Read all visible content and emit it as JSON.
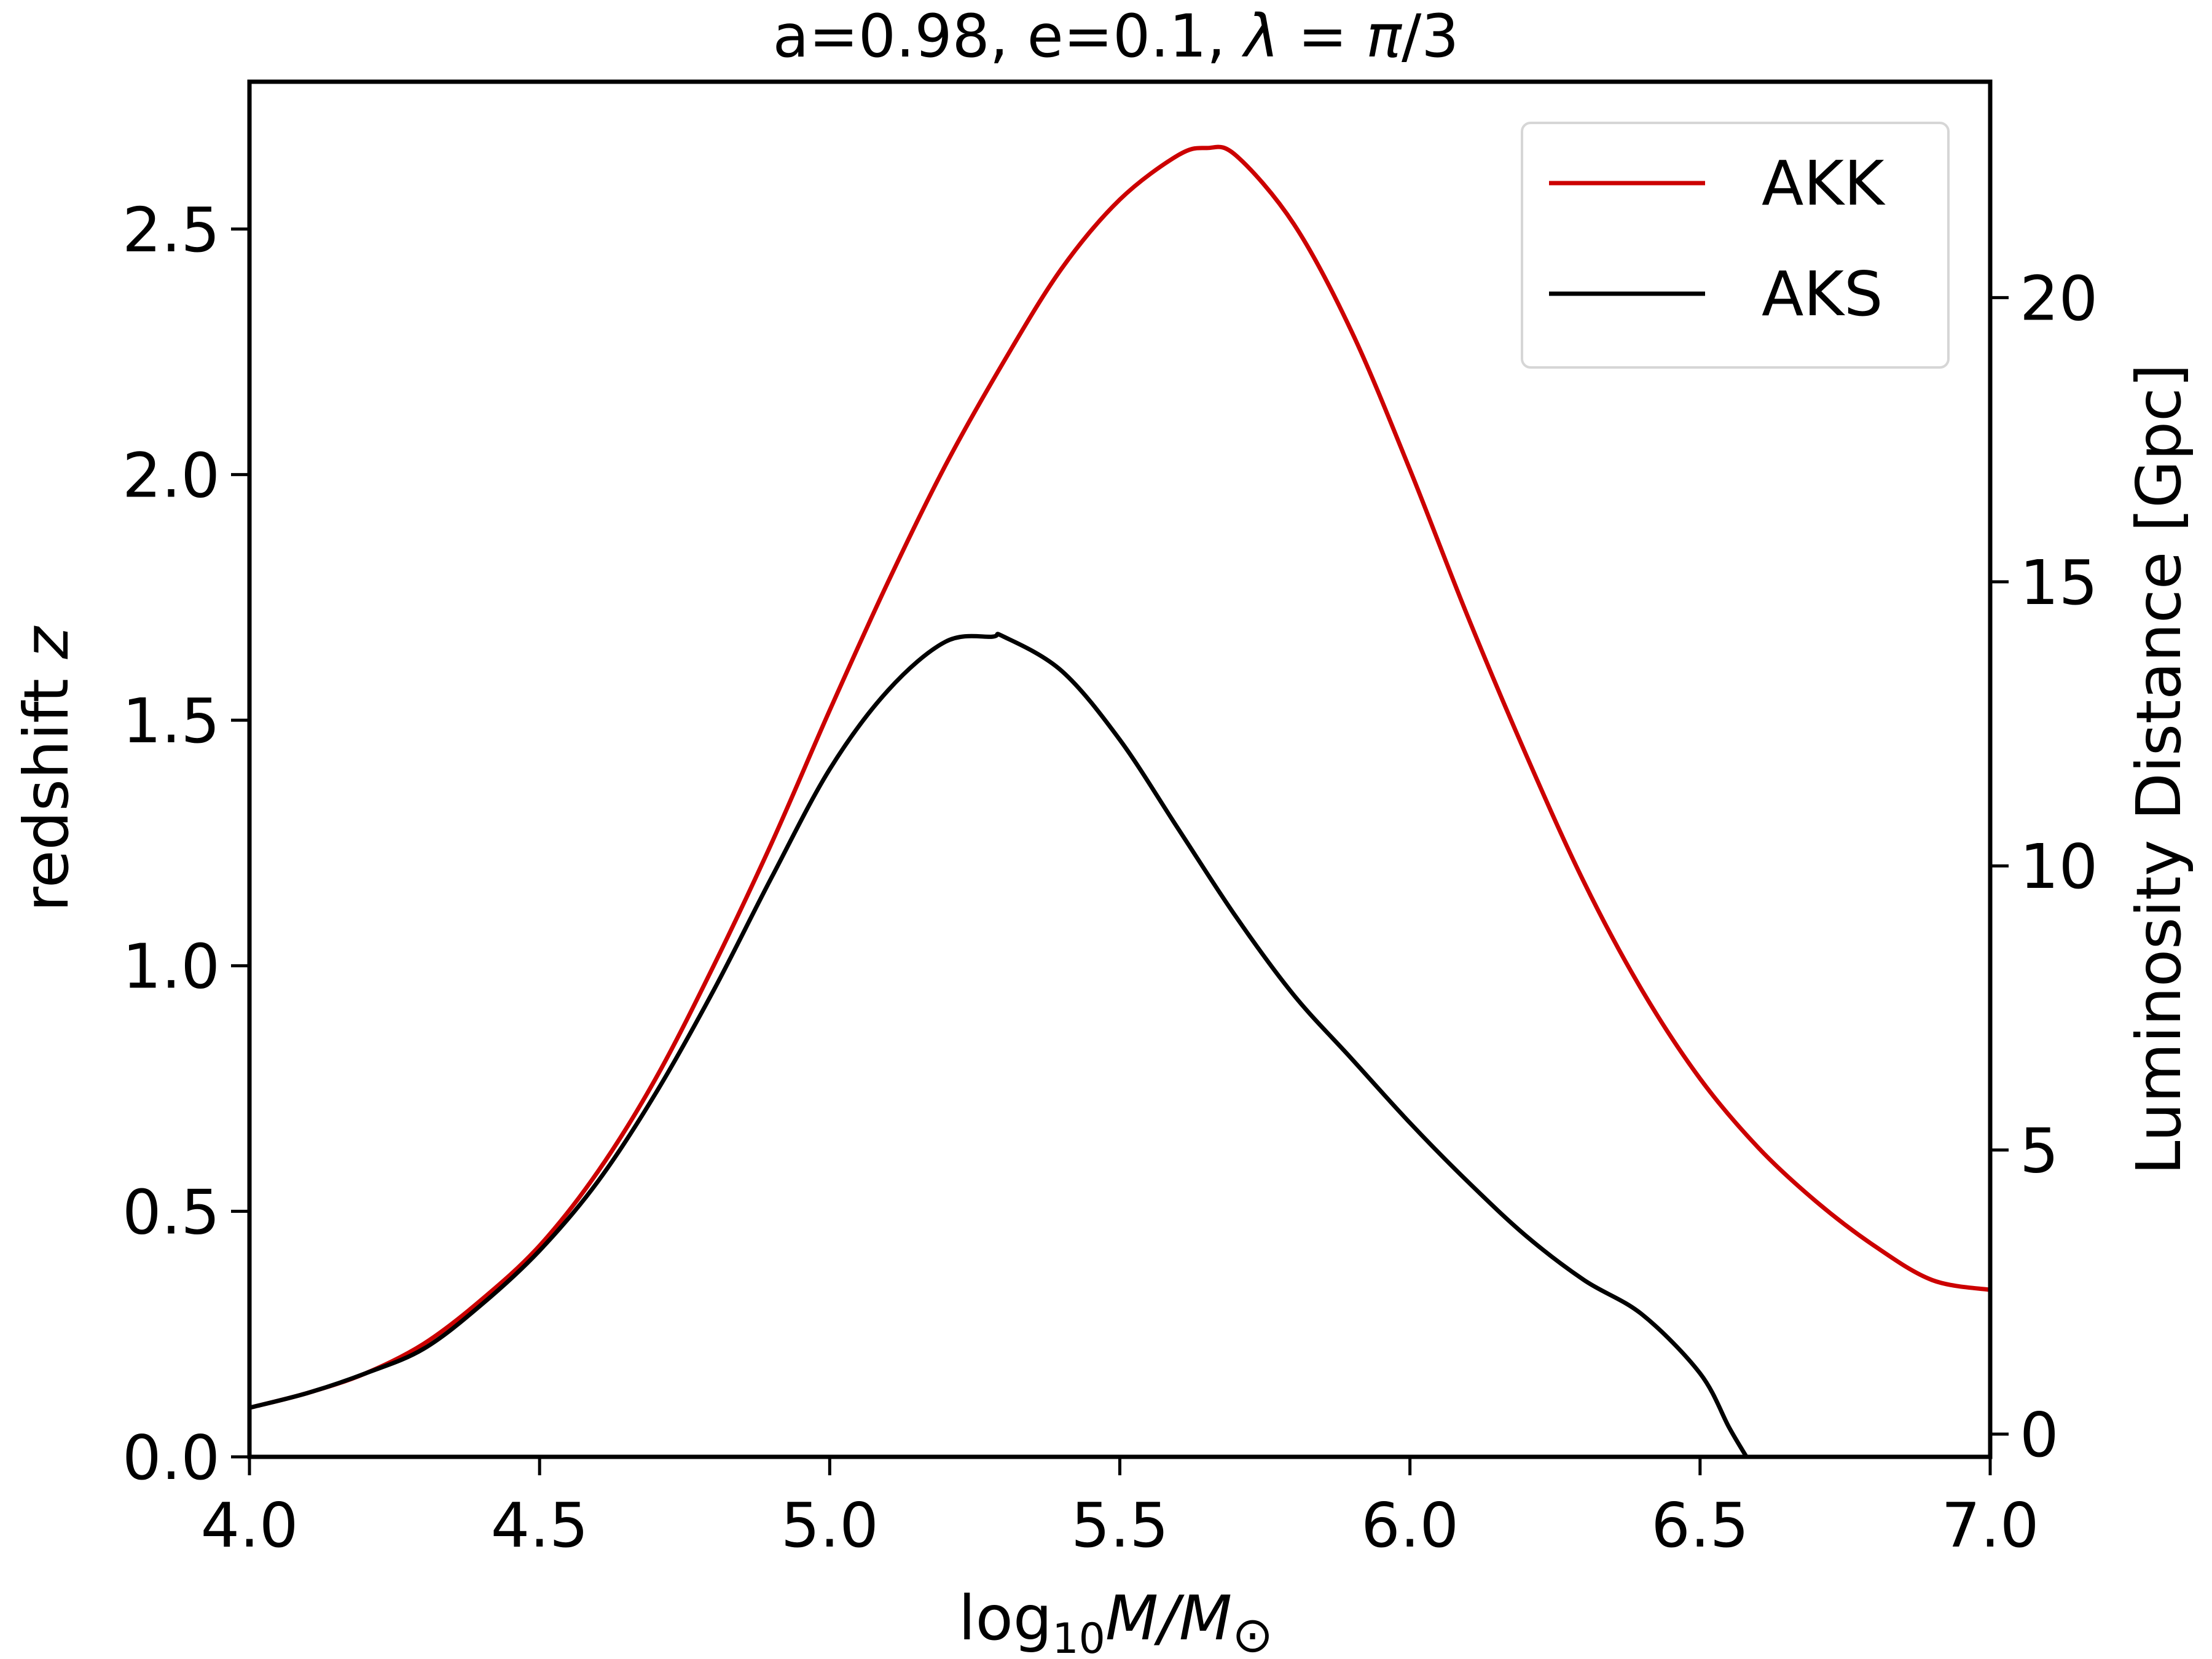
{
  "chart_data": {
    "type": "line",
    "title": "a=0.98, e=0.1, λ = π/3",
    "xlabel": "log10M/M⊙",
    "ylabel": "redshift z",
    "y2label": "Luminosity Distance [Gpc]",
    "xlim": [
      4.0,
      7.0
    ],
    "ylim": [
      0.0,
      2.8
    ],
    "y2lim": [
      -0.4,
      23.8
    ],
    "xticks": [
      "4.0",
      "4.5",
      "5.0",
      "5.5",
      "6.0",
      "6.5",
      "7.0"
    ],
    "yticks": [
      "0.0",
      "0.5",
      "1.0",
      "1.5",
      "2.0",
      "2.5"
    ],
    "y2ticks": [
      "0",
      "5",
      "10",
      "15",
      "20"
    ],
    "grid": false,
    "legend_position": "top-right",
    "series": [
      {
        "name": "AKK",
        "color": "#cc0000",
        "x": [
          4.0,
          4.1,
          4.2,
          4.3,
          4.4,
          4.5,
          4.6,
          4.7,
          4.8,
          4.9,
          5.0,
          5.1,
          5.2,
          5.3,
          5.4,
          5.5,
          5.6,
          5.65,
          5.7,
          5.8,
          5.9,
          6.0,
          6.1,
          6.2,
          6.3,
          6.4,
          6.5,
          6.6,
          6.7,
          6.8,
          6.9,
          7.0
        ],
        "y": [
          0.1,
          0.13,
          0.17,
          0.23,
          0.32,
          0.43,
          0.58,
          0.77,
          1.0,
          1.25,
          1.52,
          1.78,
          2.02,
          2.23,
          2.42,
          2.56,
          2.65,
          2.665,
          2.65,
          2.51,
          2.29,
          2.01,
          1.71,
          1.43,
          1.17,
          0.95,
          0.77,
          0.63,
          0.52,
          0.43,
          0.36,
          0.34
        ]
      },
      {
        "name": "AKS",
        "color": "#000000",
        "x": [
          4.0,
          4.1,
          4.2,
          4.3,
          4.4,
          4.5,
          4.6,
          4.7,
          4.8,
          4.9,
          5.0,
          5.1,
          5.2,
          5.28,
          5.3,
          5.4,
          5.5,
          5.6,
          5.7,
          5.8,
          5.9,
          6.0,
          6.1,
          6.2,
          6.3,
          6.4,
          6.5,
          6.55,
          6.58
        ],
        "y": [
          0.1,
          0.13,
          0.17,
          0.22,
          0.31,
          0.42,
          0.56,
          0.74,
          0.95,
          1.18,
          1.4,
          1.56,
          1.66,
          1.67,
          1.67,
          1.6,
          1.46,
          1.28,
          1.1,
          0.94,
          0.81,
          0.68,
          0.56,
          0.45,
          0.36,
          0.29,
          0.17,
          0.06,
          0.0
        ]
      }
    ]
  }
}
